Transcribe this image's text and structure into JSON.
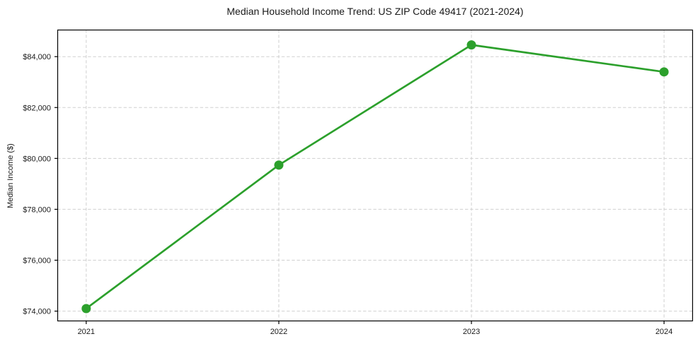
{
  "chart_data": {
    "type": "line",
    "title": "Median Household Income Trend: US ZIP Code 49417 (2021-2024)",
    "xlabel": "",
    "ylabel": "Median Income ($)",
    "x": [
      2021,
      2022,
      2023,
      2024
    ],
    "x_labels": [
      "2021",
      "2022",
      "2023",
      "2024"
    ],
    "series": [
      {
        "name": "Median Household Income",
        "values": [
          74100,
          79740,
          84460,
          83400
        ]
      }
    ],
    "xlim": [
      2020.85,
      2024.15
    ],
    "ylim": [
      73600,
      85060
    ],
    "yticks": [
      74000,
      76000,
      78000,
      80000,
      82000,
      84000
    ],
    "ytick_labels": [
      "$74,000",
      "$76,000",
      "$78,000",
      "$80,000",
      "$82,000",
      "$84,000"
    ],
    "grid": true,
    "grid_style": "dashed",
    "legend": "none",
    "line_color": "#2ca02c",
    "marker": "circle",
    "grid_color": "#d0d0d0",
    "spine_color": "#000000",
    "background_color": "#ffffff"
  }
}
